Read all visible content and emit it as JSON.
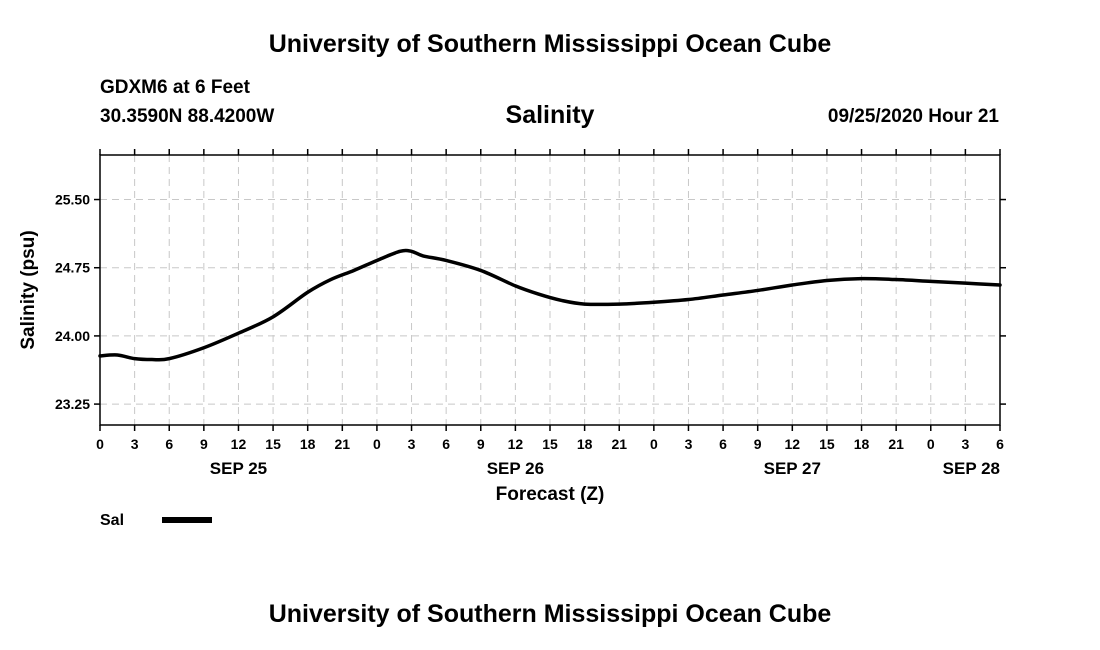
{
  "header": {
    "title": "University of Southern Mississippi Ocean Cube",
    "station": "GDXM6 at 6 Feet",
    "coordinates": "30.3590N 88.4200W",
    "run_time": "09/25/2020 Hour 21"
  },
  "footer": {
    "title": "University of Southern Mississippi Ocean Cube"
  },
  "chart_data": {
    "type": "line",
    "title": "Salinity",
    "xlabel": "Forecast (Z)",
    "ylabel": "Salinity (psu)",
    "xlim": [
      0,
      78
    ],
    "ylim": [
      23.02,
      25.99
    ],
    "y_ticks": [
      23.25,
      24.0,
      24.75,
      25.5
    ],
    "y_tick_labels": [
      "23.25",
      "24.00",
      "24.75",
      "25.50"
    ],
    "x_ticks": [
      0,
      3,
      6,
      9,
      12,
      15,
      18,
      21,
      24,
      27,
      30,
      33,
      36,
      39,
      42,
      45,
      48,
      51,
      54,
      57,
      60,
      63,
      66,
      69,
      72,
      75,
      78
    ],
    "x_tick_labels": [
      "0",
      "3",
      "6",
      "9",
      "12",
      "15",
      "18",
      "21",
      "0",
      "3",
      "6",
      "9",
      "12",
      "15",
      "18",
      "21",
      "0",
      "3",
      "6",
      "9",
      "12",
      "15",
      "18",
      "21",
      "0",
      "3",
      "6"
    ],
    "date_labels": [
      {
        "hour": 12,
        "label": "SEP 25"
      },
      {
        "hour": 36,
        "label": "SEP 26"
      },
      {
        "hour": 60,
        "label": "SEP 27"
      },
      {
        "hour": 78,
        "label": "SEP 28"
      }
    ],
    "grid": true,
    "legend": {
      "position": "bottom-left",
      "entries": [
        "Sal"
      ]
    },
    "series": [
      {
        "name": "Sal",
        "color": "#000000",
        "x": [
          0,
          1.5,
          3,
          4.5,
          6,
          9,
          12,
          15,
          18,
          20,
          22,
          24,
          26,
          27,
          28,
          30,
          33,
          36,
          38,
          40,
          42,
          45,
          48,
          51,
          54,
          57,
          60,
          63,
          66,
          69,
          72,
          75,
          78
        ],
        "y": [
          23.78,
          23.79,
          23.75,
          23.74,
          23.75,
          23.87,
          24.03,
          24.21,
          24.48,
          24.62,
          24.72,
          24.83,
          24.93,
          24.93,
          24.88,
          24.83,
          24.72,
          24.55,
          24.46,
          24.39,
          24.35,
          24.35,
          24.37,
          24.4,
          24.45,
          24.5,
          24.56,
          24.61,
          24.63,
          24.62,
          24.6,
          24.58,
          24.56
        ]
      }
    ]
  }
}
